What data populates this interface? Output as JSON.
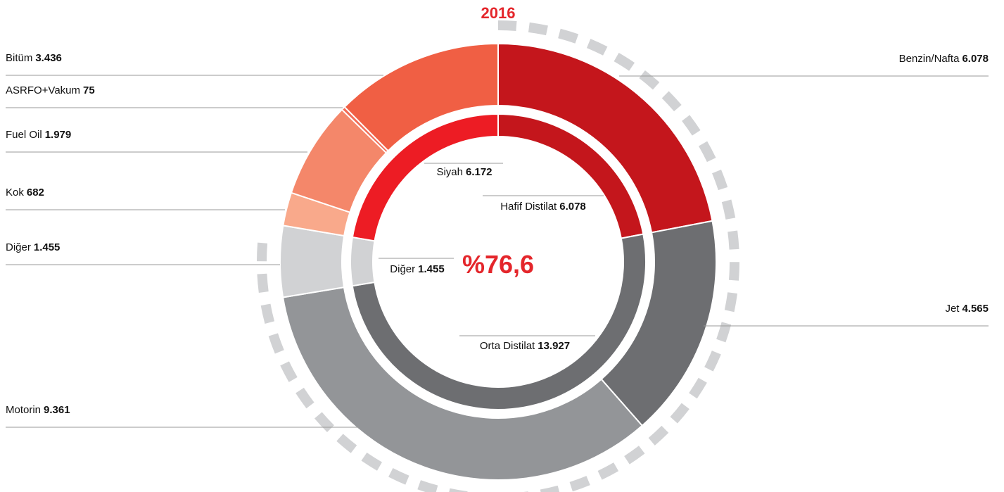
{
  "chart_data": {
    "type": "donut",
    "title": "2016",
    "center": {
      "value": 76.6,
      "label": "%76,6"
    },
    "rings": [
      {
        "categories": [
          "Benzin/Nafta",
          "Jet",
          "Motorin",
          "Diğer",
          "Kok",
          "Fuel Oil",
          "ASRFO+Vakum",
          "Bitüm"
        ],
        "values": [
          6078,
          4565,
          9361,
          1455,
          682,
          1979,
          75,
          3436
        ],
        "value_labels": [
          "6.078",
          "4.565",
          "9.361",
          "1.455",
          "682",
          "1.979",
          "75",
          "3.436"
        ],
        "colors": [
          "#c4161c",
          "#6d6e71",
          "#939598",
          "#d1d2d4",
          "#f9a98b",
          "#f4876a",
          "#f26b55",
          "#f05f44"
        ]
      },
      {
        "categories": [
          "Hafif Distilat",
          "Orta Distilat",
          "Diğer",
          "Siyah"
        ],
        "values": [
          6078,
          13927,
          1455,
          6172
        ],
        "value_labels": [
          "6.078",
          "13.927",
          "1.455",
          "6.172"
        ],
        "colors": [
          "#c4161c",
          "#6d6e71",
          "#d1d2d4",
          "#ed1c24"
        ]
      }
    ]
  }
}
